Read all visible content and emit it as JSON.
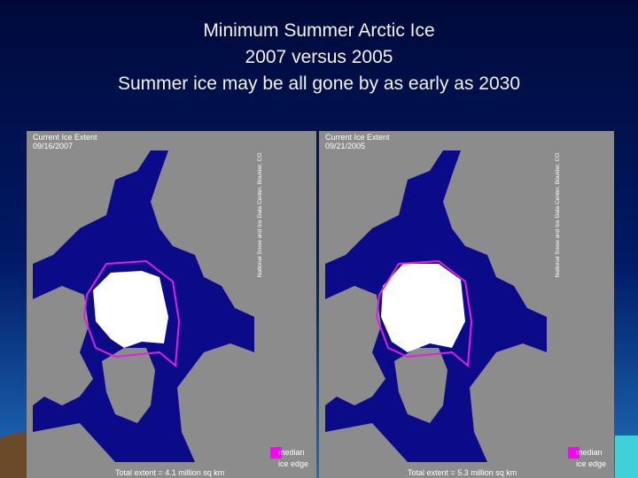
{
  "title": {
    "lines": [
      "Minimum Summer Arctic Ice",
      "2007 versus 2005",
      "Summer ice may be all gone by as early as 2030"
    ]
  },
  "panels": [
    {
      "header": "Current Ice Extent",
      "date": "09/16/2007",
      "credit": "National Snow and Ice Data Center, Boulder, CO",
      "legend": [
        "median",
        "ice edge"
      ],
      "total": "Total extent = 4.1 million sq km"
    },
    {
      "header": "Current Ice Extent",
      "date": "09/21/2005",
      "credit": "National Snow and Ice Data Center, Boulder, CO",
      "legend": [
        "median",
        "ice edge"
      ],
      "total": "Total extent = 5.3 million sq km"
    }
  ]
}
